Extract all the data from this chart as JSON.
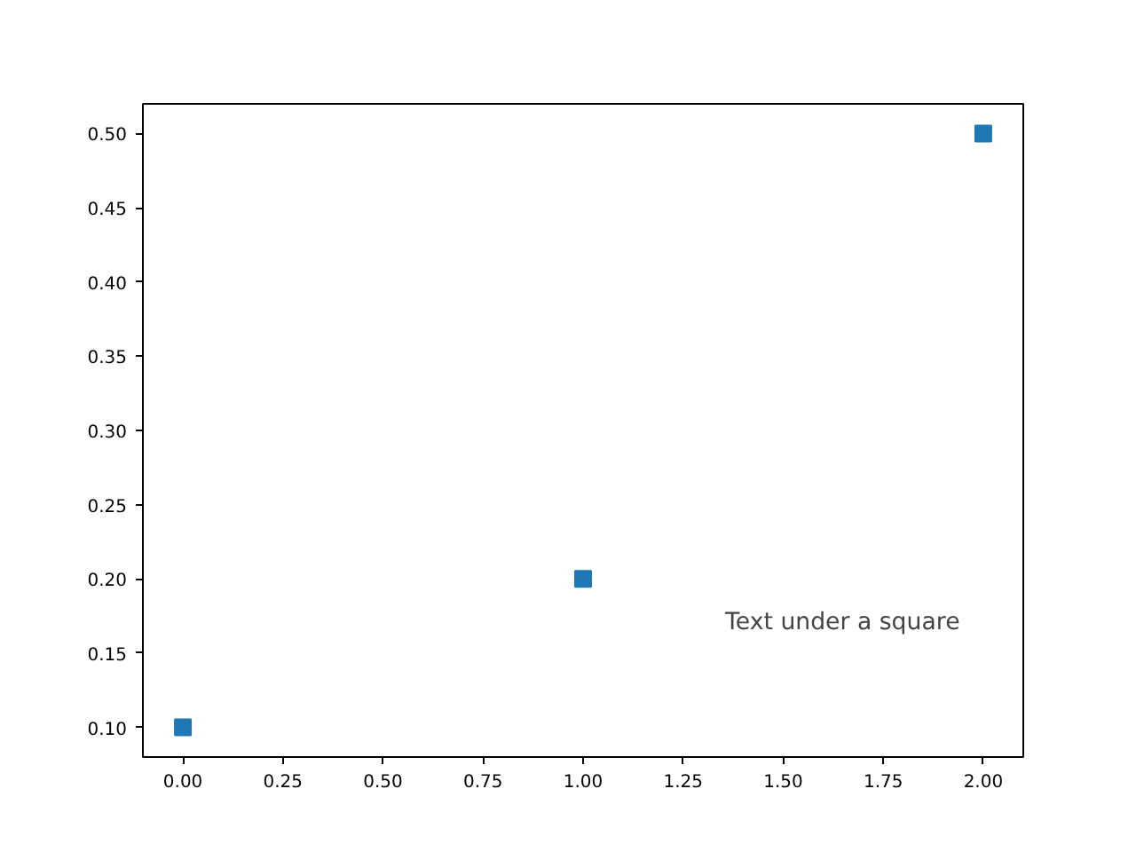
{
  "chart_data": {
    "type": "scatter",
    "x": [
      0,
      1,
      2
    ],
    "series": [
      {
        "color": "#1f77b4",
        "values": [
          0.1,
          0.2,
          0.5
        ]
      }
    ],
    "marker": "square",
    "grid": false,
    "xlim": [
      -0.1,
      2.1
    ],
    "ylim": [
      0.08,
      0.52
    ],
    "xticks": [
      {
        "value": 0,
        "label": "0.00"
      },
      {
        "value": 0.25,
        "label": "0.25"
      },
      {
        "value": 0.5,
        "label": "0.50"
      },
      {
        "value": 0.75,
        "label": "0.75"
      },
      {
        "value": 1,
        "label": "1.00"
      },
      {
        "value": 1.25,
        "label": "1.25"
      },
      {
        "value": 1.5,
        "label": "1.50"
      },
      {
        "value": 1.75,
        "label": "1.75"
      },
      {
        "value": 2,
        "label": "2.00"
      }
    ],
    "yticks": [
      {
        "value": 0.1,
        "label": "0.10"
      },
      {
        "value": 0.15,
        "label": "0.15"
      },
      {
        "value": 0.2,
        "label": "0.20"
      },
      {
        "value": 0.25,
        "label": "0.25"
      },
      {
        "value": 0.3,
        "label": "0.30"
      },
      {
        "value": 0.35,
        "label": "0.35"
      },
      {
        "value": 0.4,
        "label": "0.40"
      },
      {
        "value": 0.45,
        "label": "0.45"
      },
      {
        "value": 0.5,
        "label": "0.50"
      }
    ],
    "annotations": [
      "Text under a square"
    ]
  }
}
